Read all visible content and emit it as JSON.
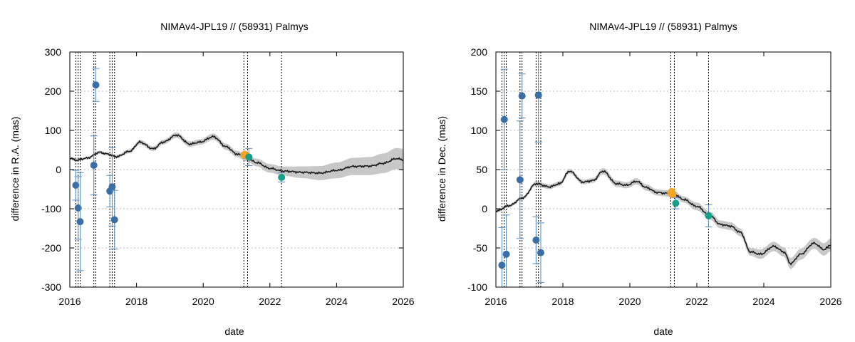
{
  "chart_data": [
    {
      "type": "scatter",
      "title": "NIMAv4-JPL19 // (58931) Palmys",
      "xlabel": "date",
      "ylabel": "difference in R.A. (mas)",
      "xlim": [
        2016,
        2026
      ],
      "ylim": [
        -300,
        300
      ],
      "xticks": [
        "2016",
        "2018",
        "2020",
        "2022",
        "2024",
        "2026"
      ],
      "yticks": [
        "-300",
        "-200",
        "-100",
        "0",
        "100",
        "200",
        "300"
      ],
      "xtick_values": [
        2016,
        2018,
        2020,
        2022,
        2024,
        2026
      ],
      "ytick_values": [
        -300,
        -200,
        -100,
        0,
        100,
        200,
        300
      ],
      "grid": true,
      "vlines": [
        2016.18,
        2016.25,
        2016.31,
        2016.72,
        2016.78,
        2017.2,
        2017.27,
        2017.34,
        2021.22,
        2021.33,
        2022.35
      ],
      "model_curve": {
        "x": [
          2016,
          2016.2,
          2016.5,
          2016.9,
          2017.1,
          2017.4,
          2017.8,
          2018.1,
          2018.5,
          2018.8,
          2019.2,
          2019.6,
          2019.9,
          2020.3,
          2020.7,
          2021.0,
          2021.3,
          2021.6,
          2022.0,
          2022.4,
          2023.0,
          2023.5,
          2024.0,
          2024.5,
          2025.0,
          2025.4,
          2025.8,
          2026.0
        ],
        "y": [
          29,
          24,
          29,
          44,
          40,
          33,
          47,
          70,
          53,
          70,
          88,
          65,
          70,
          84,
          58,
          40,
          30,
          18,
          3,
          -4,
          -7,
          -9,
          -2,
          8,
          9,
          16,
          28,
          25
        ],
        "band_halfwidth": [
          3,
          3,
          3,
          4,
          4,
          4,
          5,
          6,
          6,
          6,
          7,
          7,
          7,
          8,
          8,
          8,
          9,
          10,
          11,
          12,
          15,
          18,
          20,
          22,
          23,
          25,
          27,
          28
        ]
      },
      "series": [
        {
          "name": "blue",
          "color": "#3a6ea5",
          "points": [
            {
              "x": 2016.18,
              "y": -40,
              "err": 38
            },
            {
              "x": 2016.25,
              "y": -98,
              "err": 80
            },
            {
              "x": 2016.31,
              "y": -133,
              "err": 125
            },
            {
              "x": 2016.72,
              "y": 11,
              "err": 75
            },
            {
              "x": 2016.78,
              "y": 216,
              "err": 42
            },
            {
              "x": 2017.2,
              "y": -55,
              "err": 40
            },
            {
              "x": 2017.27,
              "y": -44,
              "err": 100
            },
            {
              "x": 2017.34,
              "y": -128,
              "err": 75
            }
          ]
        },
        {
          "name": "orange",
          "color": "#f5a623",
          "points": [
            {
              "x": 2021.22,
              "y": 37,
              "err": 3
            },
            {
              "x": 2021.25,
              "y": 39,
              "err": 3
            },
            {
              "x": 2021.28,
              "y": 36,
              "err": 3
            }
          ]
        },
        {
          "name": "teal",
          "color": "#16a08c",
          "points": [
            {
              "x": 2021.37,
              "y": 32,
              "err": 22
            },
            {
              "x": 2022.35,
              "y": -20,
              "err": 12
            }
          ]
        }
      ]
    },
    {
      "type": "scatter",
      "title": "NIMAv4-JPL19 // (58931) Palmys",
      "xlabel": "date",
      "ylabel": "difference in Dec. (mas)",
      "xlim": [
        2016,
        2026
      ],
      "ylim": [
        -100,
        200
      ],
      "xticks": [
        "2016",
        "2018",
        "2020",
        "2022",
        "2024",
        "2026"
      ],
      "yticks": [
        "-100",
        "-50",
        "0",
        "50",
        "100",
        "150",
        "200"
      ],
      "xtick_values": [
        2016,
        2018,
        2020,
        2022,
        2024,
        2026
      ],
      "ytick_values": [
        -100,
        -50,
        0,
        50,
        100,
        150,
        200
      ],
      "grid": true,
      "vlines": [
        2016.18,
        2016.25,
        2016.31,
        2016.72,
        2016.78,
        2017.2,
        2017.27,
        2017.34,
        2021.22,
        2021.33,
        2022.35
      ],
      "model_curve": {
        "x": [
          2016,
          2016.4,
          2016.8,
          2017.2,
          2017.6,
          2017.9,
          2018.2,
          2018.6,
          2018.9,
          2019.2,
          2019.6,
          2019.9,
          2020.2,
          2020.5,
          2020.8,
          2021.0,
          2021.3,
          2021.6,
          2022.0,
          2022.4,
          2022.7,
          2023.0,
          2023.3,
          2023.6,
          2023.9,
          2024.3,
          2024.6,
          2024.8,
          2025.1,
          2025.5,
          2025.8,
          2026.0
        ],
        "y": [
          -3,
          4,
          14,
          32,
          28,
          32,
          48,
          34,
          36,
          48,
          32,
          30,
          35,
          27,
          21,
          20,
          19,
          12,
          3,
          -9,
          -20,
          -22,
          -30,
          -55,
          -58,
          -48,
          -55,
          -70,
          -58,
          -44,
          -52,
          -46
        ],
        "band_halfwidth": [
          2,
          2,
          2,
          3,
          3,
          3,
          3,
          3,
          3,
          4,
          4,
          4,
          4,
          4,
          4,
          4,
          4,
          4,
          5,
          5,
          5,
          5,
          5,
          5,
          6,
          6,
          6,
          7,
          7,
          7,
          8,
          8
        ]
      },
      "series": [
        {
          "name": "blue",
          "color": "#3a6ea5",
          "points": [
            {
              "x": 2016.18,
              "y": -72,
              "err": 48
            },
            {
              "x": 2016.25,
              "y": 114,
              "err": 64
            },
            {
              "x": 2016.31,
              "y": -58,
              "err": 50
            },
            {
              "x": 2016.72,
              "y": 37,
              "err": 75
            },
            {
              "x": 2016.78,
              "y": 144,
              "err": 28
            },
            {
              "x": 2017.2,
              "y": -40,
              "err": 30
            },
            {
              "x": 2017.27,
              "y": 145,
              "err": 60
            },
            {
              "x": 2017.34,
              "y": -56,
              "err": 38
            }
          ]
        },
        {
          "name": "orange",
          "color": "#f5a623",
          "points": [
            {
              "x": 2021.22,
              "y": 20,
              "err": 2
            },
            {
              "x": 2021.25,
              "y": 22,
              "err": 2
            },
            {
              "x": 2021.28,
              "y": 18,
              "err": 2
            }
          ]
        },
        {
          "name": "teal",
          "color": "#16a08c",
          "points": [
            {
              "x": 2021.37,
              "y": 7,
              "err": 7
            },
            {
              "x": 2022.35,
              "y": -9,
              "err": 14
            }
          ]
        }
      ]
    }
  ]
}
